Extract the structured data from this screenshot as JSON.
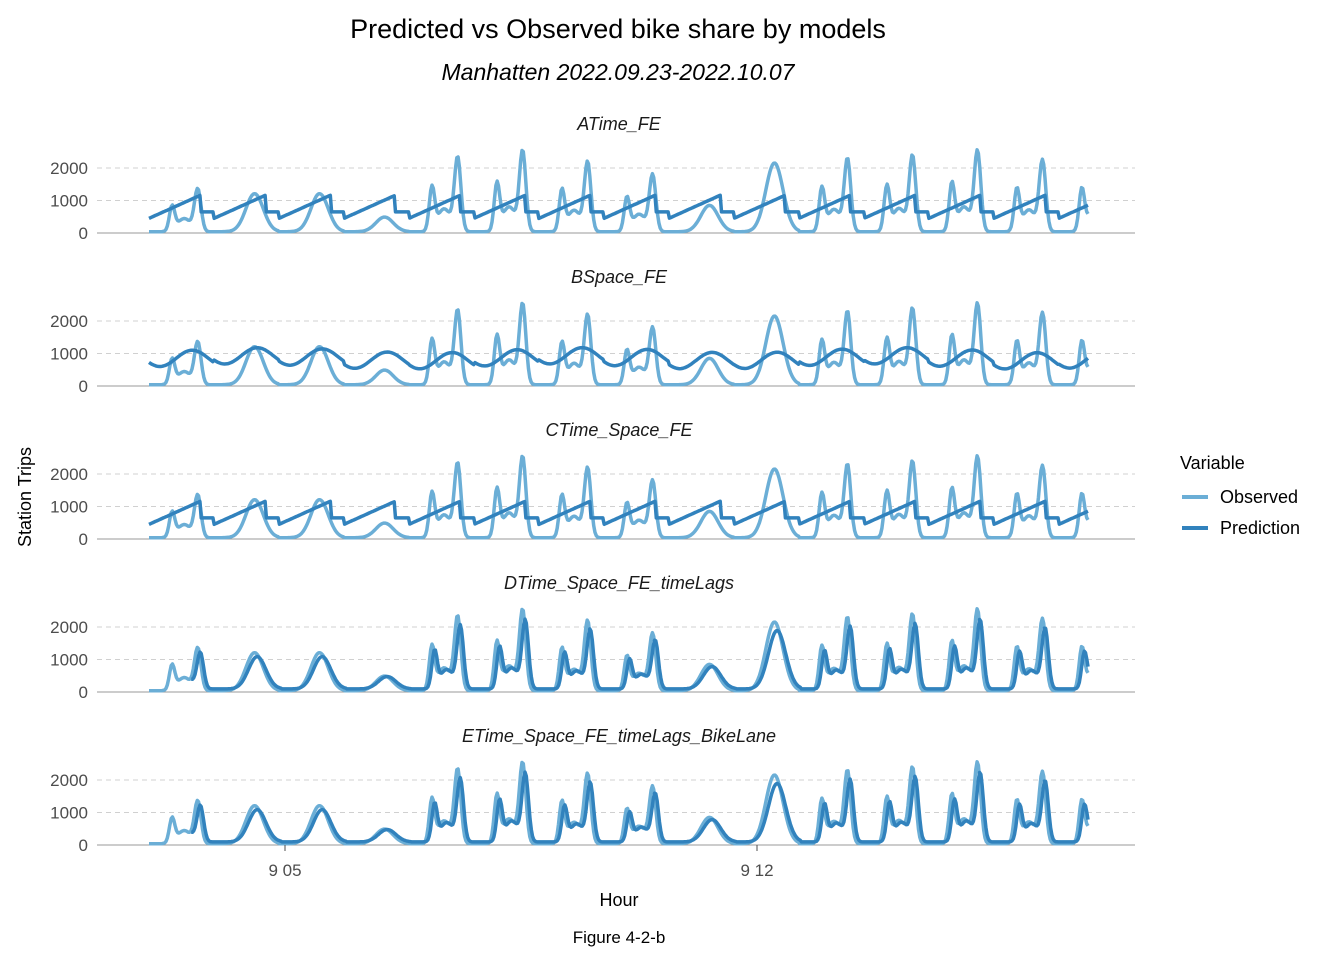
{
  "chart_data": {
    "type": "line",
    "title": "Predicted vs Observed bike share by models",
    "subtitle": "Manhatten 2022.09.23-2022.10.07",
    "xlabel": "Hour",
    "ylabel": "Station Trips",
    "caption": "Figure 4-2-b",
    "x_ticks": [
      "9 05",
      "9 12"
    ],
    "y_ticks": [
      0,
      1000,
      2000
    ],
    "ylim": [
      0,
      2600
    ],
    "grid": "horizontal dashed",
    "legend": {
      "title": "Variable",
      "position": "right",
      "entries": [
        {
          "name": "Observed",
          "color": "#6baed6"
        },
        {
          "name": "Prediction",
          "color": "#3182bd"
        }
      ]
    },
    "x_days": [
      0,
      1,
      2,
      3,
      4,
      5,
      6,
      7,
      8,
      9,
      10,
      11,
      12,
      13,
      14
    ],
    "observed_daily_peaks": [
      1350,
      1300,
      1300,
      500,
      2350,
      2550,
      2200,
      1800,
      900,
      2350,
      2300,
      2400,
      2550,
      2250,
      2250
    ],
    "panels": [
      {
        "name": "ATime_FE",
        "model": "time",
        "lags": false
      },
      {
        "name": "BSpace_FE",
        "model": "space",
        "lags": false
      },
      {
        "name": "CTime_Space_FE",
        "model": "time",
        "lags": false
      },
      {
        "name": "DTime_Space_FE_timeLags",
        "model": "lags",
        "lags": true
      },
      {
        "name": "ETime_Space_FE_timeLags_BikeLane",
        "model": "lags",
        "lags": true
      }
    ]
  }
}
